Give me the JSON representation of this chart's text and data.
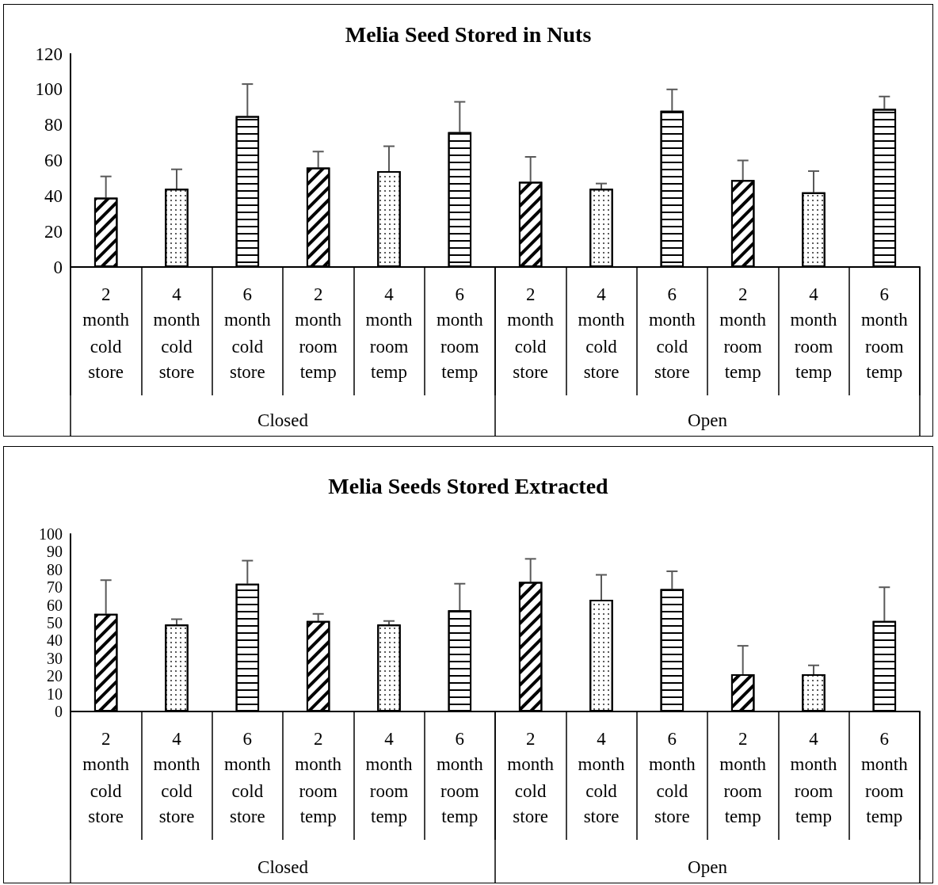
{
  "chart_data": [
    {
      "type": "bar",
      "title": "Melia Seed Stored in Nuts",
      "categories": [
        "2 month cold store",
        "4 month cold store",
        "6 month cold store",
        "2 month room temp",
        "4 month room temp",
        "6 month room temp",
        "2 month cold store",
        "4 month cold store",
        "6 month cold store",
        "2 month room temp",
        "4 month room temp",
        "6 month room temp"
      ],
      "values": [
        39,
        44,
        85,
        56,
        54,
        76,
        48,
        44,
        88,
        49,
        42,
        89
      ],
      "errors": [
        12,
        11,
        18,
        9,
        14,
        17,
        14,
        3,
        12,
        11,
        12,
        7
      ],
      "colors": [
        "#ffffff",
        "#ffffff",
        "#ffffff",
        "#ffffff",
        "#ffffff",
        "#ffffff",
        "#ffffff",
        "#ffffff",
        "#ffffff",
        "#ffffff",
        "#ffffff",
        "#ffffff"
      ],
      "ylim": [
        0,
        120
      ],
      "yticks": [
        0,
        20,
        40,
        60,
        80,
        100,
        120
      ],
      "grid": false,
      "annotations": [
        "Closed",
        "Open"
      ]
    },
    {
      "type": "bar",
      "title": "Melia Seeds Stored Extracted",
      "categories": [
        "2 month cold store",
        "4 month cold store",
        "6 month cold store",
        "2 month room temp",
        "4 month room temp",
        "6 month room temp",
        "2 month cold store",
        "4 month cold store",
        "6 month cold store",
        "2 month room temp",
        "4 month room temp",
        "6 month room temp"
      ],
      "values": [
        55,
        49,
        72,
        51,
        49,
        57,
        73,
        63,
        69,
        21,
        21,
        51
      ],
      "errors": [
        19,
        3,
        13,
        4,
        2,
        15,
        13,
        14,
        10,
        16,
        5,
        19
      ],
      "colors": [
        "#ffffff",
        "#ffffff",
        "#ffffff",
        "#ffffff",
        "#ffffff",
        "#ffffff",
        "#ffffff",
        "#ffffff",
        "#ffffff",
        "#ffffff",
        "#ffffff",
        "#ffffff"
      ],
      "ylim": [
        0,
        100
      ],
      "yticks": [
        0,
        10,
        20,
        30,
        40,
        50,
        60,
        70,
        80,
        90,
        100
      ],
      "grid": false,
      "annotations": [
        "Closed",
        "Open"
      ]
    }
  ]
}
